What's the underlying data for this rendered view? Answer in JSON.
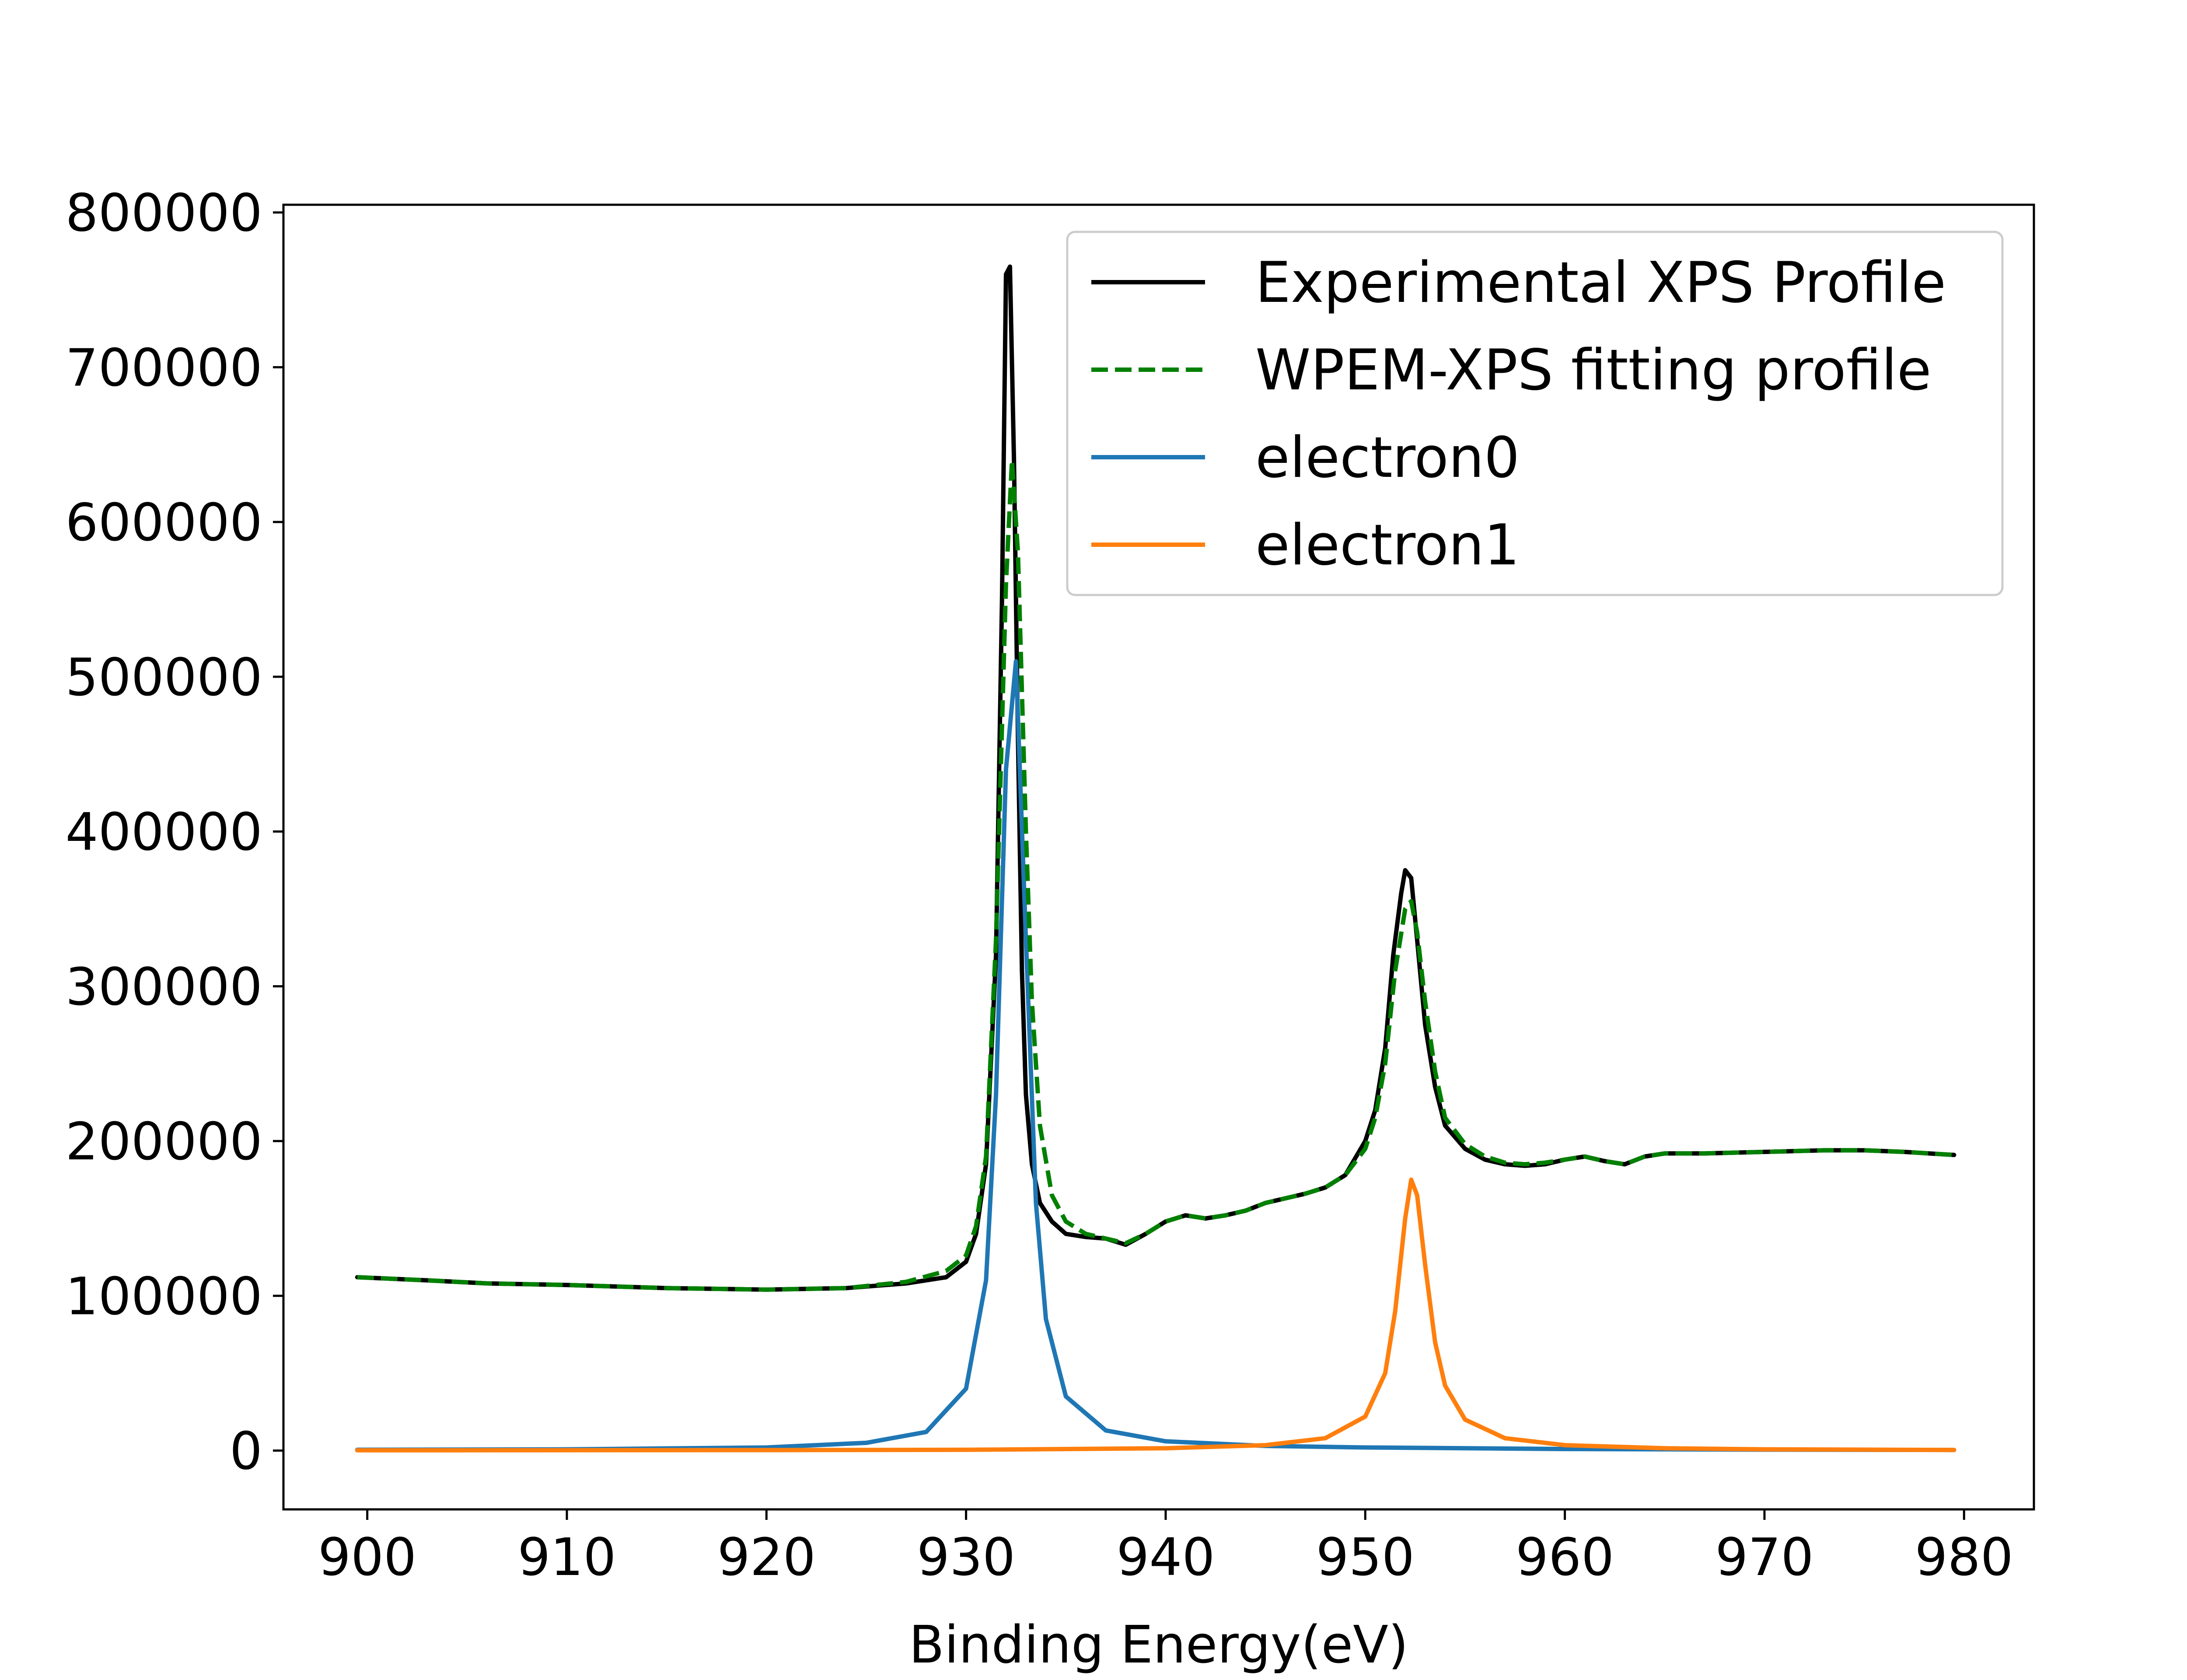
{
  "chart_data": {
    "type": "line",
    "title": "",
    "xlabel": "Binding Energy(eV)",
    "ylabel": "",
    "xlim": [
      895.8,
      983.5
    ],
    "ylim": [
      -38000,
      805000
    ],
    "xticks": [
      900,
      910,
      920,
      930,
      940,
      950,
      960,
      970,
      980
    ],
    "yticks": [
      0,
      100000,
      200000,
      300000,
      400000,
      500000,
      600000,
      700000,
      800000
    ],
    "grid": false,
    "legend_position": "top-right",
    "colors": {
      "experimental": "#000000",
      "fit": "#008000",
      "electron0": "#1f77b4",
      "electron1": "#ff7f0e"
    },
    "series": [
      {
        "name": "Experimental XPS Profile",
        "style": "solid",
        "x": [
          899.5,
          903,
          906,
          910,
          915,
          920,
          924,
          927,
          929,
          930,
          930.5,
          931,
          931.5,
          931.8,
          932,
          932.2,
          932.4,
          932.6,
          932.8,
          933,
          933.3,
          933.7,
          934.3,
          935,
          936,
          937,
          938,
          939,
          940,
          941,
          942,
          943,
          944,
          945,
          946,
          947,
          948,
          949,
          950,
          950.5,
          951,
          951.4,
          951.8,
          952,
          952.3,
          952.6,
          953,
          953.5,
          954,
          955,
          956,
          957,
          958,
          959,
          960,
          961,
          962,
          963,
          964,
          965,
          967,
          970,
          973,
          975,
          977,
          979.5
        ],
        "y": [
          112000,
          110000,
          108000,
          107000,
          105000,
          104000,
          105000,
          108000,
          112000,
          122000,
          140000,
          185000,
          320000,
          550000,
          760000,
          765000,
          640000,
          460000,
          310000,
          230000,
          185000,
          160000,
          148000,
          140000,
          138000,
          137000,
          133000,
          140000,
          148000,
          152000,
          150000,
          152000,
          155000,
          160000,
          163000,
          166000,
          170000,
          178000,
          200000,
          220000,
          260000,
          320000,
          360000,
          375000,
          370000,
          330000,
          275000,
          235000,
          210000,
          195000,
          188000,
          185000,
          184000,
          185000,
          188000,
          190000,
          187000,
          185000,
          190000,
          192000,
          192000,
          193000,
          194000,
          194000,
          193000,
          191000
        ]
      },
      {
        "name": "WPEM-XPS fitting profile",
        "style": "dashed",
        "x": [
          899.5,
          903,
          906,
          910,
          915,
          920,
          924,
          927,
          929,
          930,
          930.5,
          931,
          931.5,
          932,
          932.3,
          932.6,
          933,
          933.3,
          933.7,
          934.3,
          935,
          936,
          937,
          938,
          939,
          940,
          941,
          942,
          943,
          944,
          945,
          946,
          947,
          948,
          949,
          950,
          950.5,
          951,
          951.5,
          952,
          952.3,
          952.6,
          953,
          953.5,
          954,
          955,
          956,
          957,
          958,
          959,
          960,
          961,
          962,
          963,
          964,
          965,
          967,
          970,
          973,
          975,
          977,
          979.5
        ],
        "y": [
          112000,
          110000,
          108000,
          107000,
          105000,
          104000,
          105000,
          109000,
          116000,
          126000,
          145000,
          190000,
          330000,
          560000,
          640000,
          580000,
          400000,
          290000,
          210000,
          165000,
          148000,
          140000,
          137000,
          134000,
          140000,
          148000,
          152000,
          150000,
          152000,
          155000,
          160000,
          163000,
          166000,
          170000,
          178000,
          195000,
          215000,
          250000,
          310000,
          350000,
          355000,
          335000,
          290000,
          245000,
          215000,
          198000,
          190000,
          186000,
          185000,
          186000,
          188000,
          190000,
          187000,
          185000,
          190000,
          192000,
          192000,
          193000,
          194000,
          194000,
          193000,
          191000
        ]
      },
      {
        "name": "electron0",
        "style": "solid",
        "x": [
          899.5,
          910,
          920,
          925,
          928,
          930,
          931,
          931.5,
          932,
          932.5,
          933,
          933.5,
          934,
          935,
          937,
          940,
          945,
          950,
          960,
          970,
          979.5
        ],
        "y": [
          500,
          800,
          2000,
          5000,
          12000,
          40000,
          110000,
          230000,
          440000,
          510000,
          330000,
          160000,
          85000,
          35000,
          13000,
          6000,
          3000,
          2000,
          1000,
          600,
          400
        ]
      },
      {
        "name": "electron1",
        "style": "solid",
        "x": [
          899.5,
          920,
          930,
          940,
          945,
          948,
          950,
          951,
          951.5,
          952,
          952.3,
          952.6,
          953,
          953.5,
          954,
          955,
          957,
          960,
          965,
          970,
          979.5
        ],
        "y": [
          200,
          300,
          500,
          1500,
          3500,
          8000,
          22000,
          50000,
          90000,
          150000,
          175000,
          165000,
          120000,
          70000,
          42000,
          20000,
          8000,
          3500,
          1500,
          800,
          400
        ]
      }
    ]
  }
}
